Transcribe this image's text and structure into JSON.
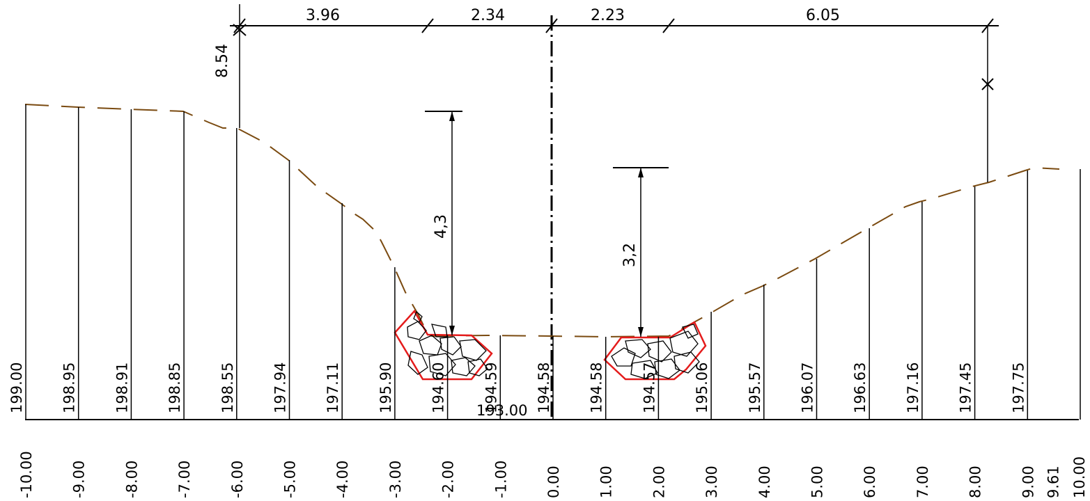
{
  "drawing": {
    "colors": {
      "ground": "#7a4a10",
      "riprap_outline": "#e41b1b",
      "lines": "#000000"
    },
    "datum_label": "193.00",
    "stations": [
      {
        "station": "-10.00",
        "elevation": "199.00"
      },
      {
        "station": "-9.00",
        "elevation": "198.95"
      },
      {
        "station": "-8.00",
        "elevation": "198.91"
      },
      {
        "station": "-7.00",
        "elevation": "198.85"
      },
      {
        "station": "-6.00",
        "elevation": "198.55"
      },
      {
        "station": "-5.00",
        "elevation": "197.94"
      },
      {
        "station": "-4.00",
        "elevation": "197.11"
      },
      {
        "station": "-3.00",
        "elevation": "195.90"
      },
      {
        "station": "-2.00",
        "elevation": "194.60"
      },
      {
        "station": "-1.00",
        "elevation": "194.59"
      },
      {
        "station": "0.00",
        "elevation": "194.58"
      },
      {
        "station": "1.00",
        "elevation": "194.58"
      },
      {
        "station": "2.00",
        "elevation": "194.57"
      },
      {
        "station": "3.00",
        "elevation": "195.06"
      },
      {
        "station": "4.00",
        "elevation": "195.57"
      },
      {
        "station": "5.00",
        "elevation": "196.07"
      },
      {
        "station": "6.00",
        "elevation": "196.63"
      },
      {
        "station": "7.00",
        "elevation": "197.16"
      },
      {
        "station": "8.00",
        "elevation": "197.45"
      },
      {
        "station": "9.00",
        "elevation": "197.75"
      },
      {
        "station": "9.61",
        "elevation": ""
      },
      {
        "station": "10.00",
        "elevation": ""
      }
    ],
    "top_dimensions": [
      "3.96",
      "2.34",
      "2.23",
      "6.05"
    ],
    "left_vertical_dimension": "8.54",
    "height_dimensions": [
      "4,3",
      "3,2"
    ]
  }
}
